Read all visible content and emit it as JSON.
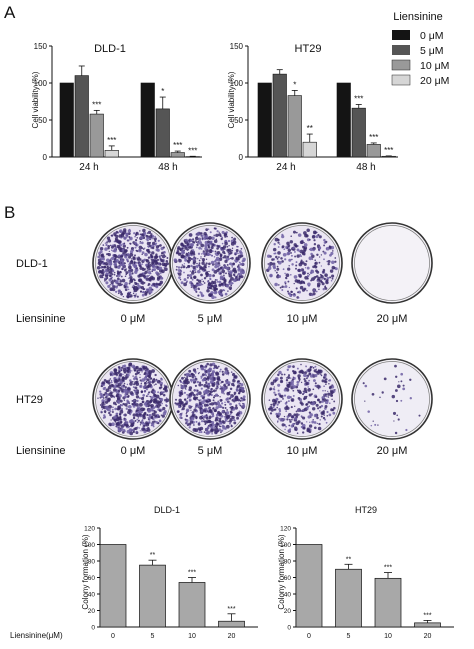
{
  "figure": {
    "panel_a_label": "A",
    "panel_b_label": "B"
  },
  "colors": {
    "treat_0": "#141414",
    "treat_5": "#555555",
    "treat_10": "#999999",
    "treat_20": "#d6d6d6",
    "colony_bar": "#a8a8a8",
    "stain_dark": "#3b2a6b",
    "stain_mid": "#6e5fa3",
    "stain_light": "#d9d2ea"
  },
  "legend": {
    "title": "Liensinine",
    "items": [
      "0 μM",
      "5 μM",
      "10 μM",
      "20 μM"
    ]
  },
  "colony_images": {
    "row_label_prefix": "Liensinine",
    "conc_labels": [
      "0 μM",
      "5 μM",
      "10 μM",
      "20 μM"
    ],
    "rows": [
      {
        "cell_line": "DLD-1",
        "density": [
          1.0,
          0.82,
          0.45,
          0.0
        ]
      },
      {
        "cell_line": "HT29",
        "density": [
          1.0,
          0.95,
          0.55,
          0.05
        ]
      }
    ]
  },
  "chart_data": [
    {
      "type": "bar",
      "title": "DLD-1",
      "ylabel": "Cell viability (%)",
      "xlabel": "",
      "ylim": [
        0,
        150
      ],
      "yticks": [
        "0",
        "50",
        "100",
        "150"
      ],
      "categories": [
        "24 h",
        "48 h"
      ],
      "series": [
        {
          "name": "0 μM",
          "values": [
            100,
            100
          ],
          "errors": [
            0,
            0
          ],
          "sig": [
            "",
            ""
          ]
        },
        {
          "name": "5 μM",
          "values": [
            110,
            65
          ],
          "errors": [
            13,
            16
          ],
          "sig": [
            "",
            "*"
          ]
        },
        {
          "name": "10 μM",
          "values": [
            58,
            6
          ],
          "errors": [
            5,
            2
          ],
          "sig": [
            "***",
            "***"
          ]
        },
        {
          "name": "20 μM",
          "values": [
            9,
            0.5
          ],
          "errors": [
            6,
            0.5
          ],
          "sig": [
            "***",
            "***"
          ]
        }
      ]
    },
    {
      "type": "bar",
      "title": "HT29",
      "ylabel": "Cell viability (%)",
      "xlabel": "",
      "ylim": [
        0,
        150
      ],
      "yticks": [
        "0",
        "50",
        "100",
        "150"
      ],
      "categories": [
        "24 h",
        "48 h"
      ],
      "series": [
        {
          "name": "0 μM",
          "values": [
            100,
            100
          ],
          "errors": [
            0,
            0
          ],
          "sig": [
            "",
            ""
          ]
        },
        {
          "name": "5 μM",
          "values": [
            112,
            66
          ],
          "errors": [
            6,
            5
          ],
          "sig": [
            "",
            "***"
          ]
        },
        {
          "name": "10 μM",
          "values": [
            83,
            17
          ],
          "errors": [
            7,
            2
          ],
          "sig": [
            "*",
            "***"
          ]
        },
        {
          "name": "20 μM",
          "values": [
            20,
            1
          ],
          "errors": [
            11,
            0.5
          ],
          "sig": [
            "**",
            "***"
          ]
        }
      ]
    },
    {
      "type": "bar",
      "title": "DLD-1",
      "ylabel": "Colony formation (%)",
      "xlabel": "Liensinine(μM)",
      "ylim": [
        0,
        120
      ],
      "yticks": [
        "0",
        "20",
        "40",
        "60",
        "80",
        "100",
        "120"
      ],
      "categories": [
        "0",
        "5",
        "10",
        "20"
      ],
      "values": [
        100,
        75,
        54,
        7
      ],
      "errors": [
        0,
        6,
        6,
        9
      ],
      "sig": [
        "",
        "**",
        "***",
        "***"
      ]
    },
    {
      "type": "bar",
      "title": "HT29",
      "ylabel": "Colony formation (%)",
      "xlabel": "",
      "ylim": [
        0,
        120
      ],
      "yticks": [
        "0",
        "20",
        "40",
        "60",
        "80",
        "100",
        "120"
      ],
      "categories": [
        "0",
        "5",
        "10",
        "20"
      ],
      "values": [
        100,
        70,
        59,
        5
      ],
      "errors": [
        0,
        6,
        7,
        3
      ],
      "sig": [
        "",
        "**",
        "***",
        "***"
      ]
    }
  ]
}
